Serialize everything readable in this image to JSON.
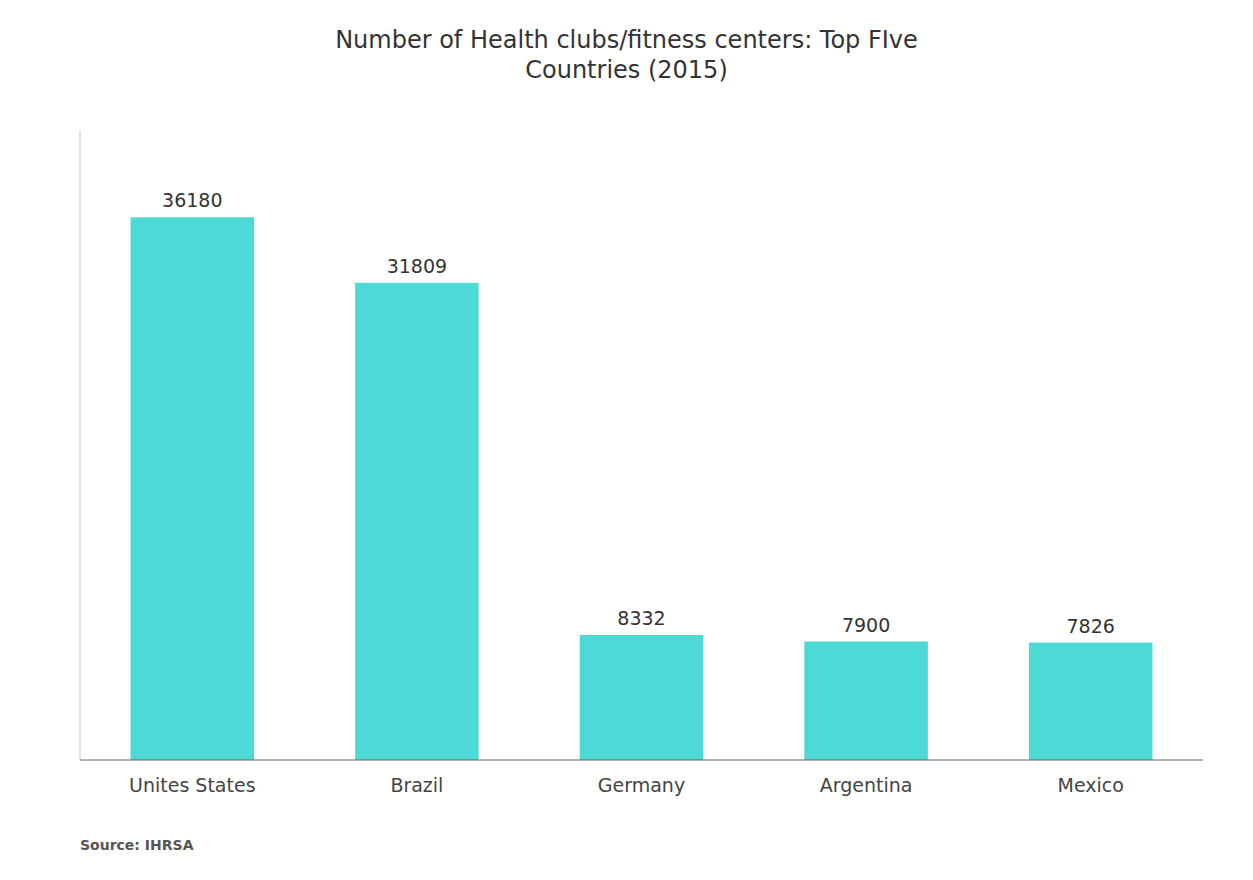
{
  "chart_data": {
    "type": "bar",
    "title": "Number of Health clubs/fitness centers: Top FIve\nCountries (2015)",
    "categories": [
      "Unites States",
      "Brazil",
      "Germany",
      "Argentina",
      "Mexico"
    ],
    "values": [
      36180,
      31809,
      8332,
      7900,
      7826
    ],
    "color": "#4DD9D5",
    "ylim": [
      0,
      42000
    ],
    "grid": false,
    "data_labels": true,
    "tick_labels": "x",
    "annotations": [
      "Source: IHRSA"
    ]
  }
}
